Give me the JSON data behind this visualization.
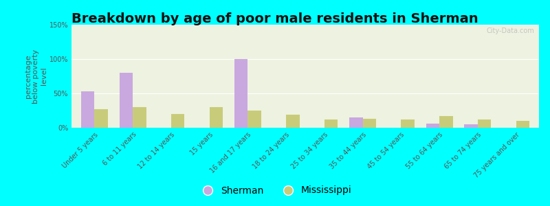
{
  "title": "Breakdown by age of poor male residents in Sherman",
  "ylabel": "percentage\nbelow poverty\nlevel",
  "categories": [
    "Under 5 years",
    "6 to 11 years",
    "12 to 14 years",
    "15 years",
    "16 and 17 years",
    "18 to 24 years",
    "25 to 34 years",
    "35 to 44 years",
    "45 to 54 years",
    "55 to 64 years",
    "65 to 74 years",
    "75 years and over"
  ],
  "sherman": [
    53,
    80,
    0,
    0,
    100,
    0,
    0,
    15,
    0,
    6,
    5,
    0
  ],
  "mississippi": [
    27,
    30,
    20,
    30,
    25,
    19,
    12,
    13,
    12,
    17,
    12,
    10
  ],
  "sherman_color": "#c9a8e0",
  "mississippi_color": "#c8cc7a",
  "ylim": [
    0,
    150
  ],
  "yticks": [
    0,
    50,
    100,
    150
  ],
  "ytick_labels": [
    "0%",
    "50%",
    "100%",
    "150%"
  ],
  "plot_bg_color": "#eef2e0",
  "outer_bg": "#00ffff",
  "bar_width": 0.35,
  "title_fontsize": 14,
  "axis_label_fontsize": 8,
  "tick_fontsize": 7,
  "legend_fontsize": 10,
  "watermark_text": "City-Data.com"
}
